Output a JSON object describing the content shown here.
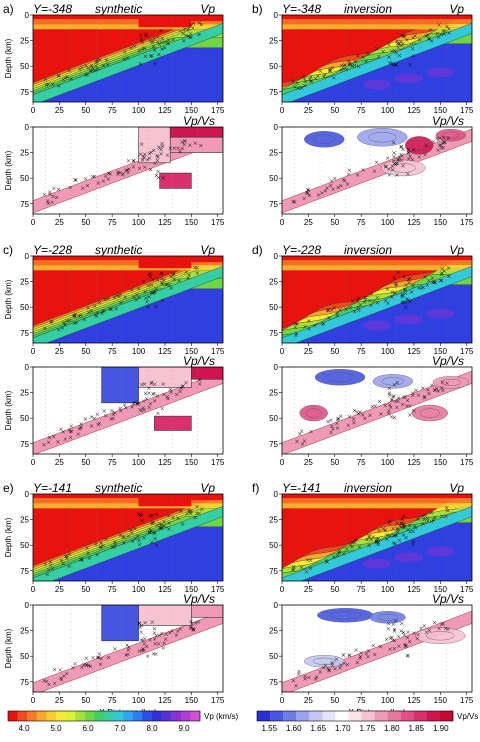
{
  "colorbars": {
    "vp": {
      "label": "Vp (km/s)",
      "ticks": [
        "4.0",
        "5.0",
        "6.0",
        "7.0",
        "8.0",
        "9.0"
      ],
      "colors": [
        "#e8120f",
        "#f2481d",
        "#f57a25",
        "#f9a82e",
        "#f9cd32",
        "#f6ec35",
        "#d9f236",
        "#a6e23c",
        "#6fd645",
        "#3fd06a",
        "#35cfa4",
        "#32c9d9",
        "#2fa6ef",
        "#2b7ef0",
        "#2d4fe7",
        "#3330d9",
        "#5a30d6",
        "#8533d3",
        "#b23bd2",
        "#d24fd7"
      ]
    },
    "vpvs": {
      "label": "Vp/Vs",
      "ticks": [
        "1.55",
        "1.60",
        "1.65",
        "1.70",
        "1.75",
        "1.80",
        "1.85",
        "1.90"
      ],
      "colors": [
        "#2b2fd6",
        "#4656e0",
        "#6b7ee6",
        "#9aa4ee",
        "#c3c8f3",
        "#e3e5f8",
        "#ffffff",
        "#fbe3ea",
        "#f6c3d3",
        "#f09ab7",
        "#e8779d",
        "#e15184",
        "#d9316d",
        "#d01450",
        "#c40a2f"
      ]
    }
  },
  "x_axis_label": "X-Distance (km)",
  "chart_data": [
    {
      "panel": "a",
      "row": 0,
      "side": "left",
      "model": "synthetic",
      "y_value": "Y=-348",
      "section": "Vp",
      "type": "heatmap",
      "ylabel": "Depth (km)",
      "xlabel": "",
      "x_ticks": [
        "0",
        "25",
        "50",
        "75",
        "100",
        "125",
        "150",
        "175"
      ],
      "y_ticks": [
        "0",
        "25",
        "50",
        "75"
      ],
      "xlim": [
        0,
        180
      ],
      "ylim": [
        0,
        85
      ]
    },
    {
      "panel": "",
      "row": 0,
      "side": "left",
      "model": "synthetic",
      "y_value": "",
      "section": "Vp/Vs",
      "type": "heatmap",
      "ylabel": "Depth (km)",
      "xlabel": "",
      "x_ticks": [
        "0",
        "25",
        "50",
        "75",
        "100",
        "125",
        "150",
        "175"
      ],
      "y_ticks": [
        "0",
        "25",
        "50",
        "75"
      ],
      "xlim": [
        0,
        180
      ],
      "ylim": [
        0,
        85
      ]
    },
    {
      "panel": "b",
      "row": 0,
      "side": "right",
      "model": "inversion",
      "y_value": "Y=-348",
      "section": "Vp",
      "type": "heatmap",
      "ylabel": "",
      "xlabel": "",
      "x_ticks": [
        "0",
        "25",
        "50",
        "75",
        "100",
        "125",
        "150",
        "175"
      ],
      "y_ticks": [
        "0",
        "25",
        "50",
        "75"
      ],
      "xlim": [
        0,
        180
      ],
      "ylim": [
        0,
        85
      ]
    },
    {
      "panel": "",
      "row": 0,
      "side": "right",
      "model": "inversion",
      "y_value": "",
      "section": "Vp/Vs",
      "type": "heatmap",
      "ylabel": "",
      "xlabel": "",
      "x_ticks": [
        "0",
        "25",
        "50",
        "75",
        "100",
        "125",
        "150",
        "175"
      ],
      "y_ticks": [
        "0",
        "25",
        "50",
        "75"
      ],
      "xlim": [
        0,
        180
      ],
      "ylim": [
        0,
        85
      ]
    },
    {
      "panel": "c",
      "row": 1,
      "side": "left",
      "model": "synthetic",
      "y_value": "Y=-228",
      "section": "Vp",
      "type": "heatmap",
      "ylabel": "Depth (km)",
      "xlabel": "",
      "x_ticks": [
        "0",
        "25",
        "50",
        "75",
        "100",
        "125",
        "150",
        "175"
      ],
      "y_ticks": [
        "0",
        "25",
        "50",
        "75"
      ],
      "xlim": [
        0,
        180
      ],
      "ylim": [
        0,
        85
      ]
    },
    {
      "panel": "",
      "row": 1,
      "side": "left",
      "model": "synthetic",
      "y_value": "",
      "section": "Vp/Vs",
      "type": "heatmap",
      "ylabel": "Depth (km)",
      "xlabel": "",
      "x_ticks": [
        "0",
        "25",
        "50",
        "75",
        "100",
        "125",
        "150",
        "175"
      ],
      "y_ticks": [
        "0",
        "25",
        "50",
        "75"
      ],
      "xlim": [
        0,
        180
      ],
      "ylim": [
        0,
        85
      ]
    },
    {
      "panel": "d",
      "row": 1,
      "side": "right",
      "model": "inversion",
      "y_value": "Y=-228",
      "section": "Vp",
      "type": "heatmap",
      "ylabel": "",
      "xlabel": "",
      "x_ticks": [
        "0",
        "25",
        "50",
        "75",
        "100",
        "125",
        "150",
        "175"
      ],
      "y_ticks": [
        "0",
        "25",
        "50",
        "75"
      ],
      "xlim": [
        0,
        180
      ],
      "ylim": [
        0,
        85
      ]
    },
    {
      "panel": "",
      "row": 1,
      "side": "right",
      "model": "inversion",
      "y_value": "",
      "section": "Vp/Vs",
      "type": "heatmap",
      "ylabel": "",
      "xlabel": "",
      "x_ticks": [
        "0",
        "25",
        "50",
        "75",
        "100",
        "125",
        "150",
        "175"
      ],
      "y_ticks": [
        "0",
        "25",
        "50",
        "75"
      ],
      "xlim": [
        0,
        180
      ],
      "ylim": [
        0,
        85
      ]
    },
    {
      "panel": "e",
      "row": 2,
      "side": "left",
      "model": "synthetic",
      "y_value": "Y=-141",
      "section": "Vp",
      "type": "heatmap",
      "ylabel": "Depth (km)",
      "xlabel": "",
      "x_ticks": [
        "0",
        "25",
        "50",
        "75",
        "100",
        "125",
        "150",
        "175"
      ],
      "y_ticks": [
        "0",
        "25",
        "50",
        "75"
      ],
      "xlim": [
        0,
        180
      ],
      "ylim": [
        0,
        85
      ]
    },
    {
      "panel": "",
      "row": 2,
      "side": "left",
      "model": "synthetic",
      "y_value": "",
      "section": "Vp/Vs",
      "type": "heatmap",
      "ylabel": "Depth (km)",
      "xlabel": "X-Distance (km)",
      "x_ticks": [
        "0",
        "25",
        "50",
        "75",
        "100",
        "125",
        "150",
        "175"
      ],
      "y_ticks": [
        "0",
        "25",
        "50",
        "75"
      ],
      "xlim": [
        0,
        180
      ],
      "ylim": [
        0,
        85
      ]
    },
    {
      "panel": "f",
      "row": 2,
      "side": "right",
      "model": "inversion",
      "y_value": "Y=-141",
      "section": "Vp",
      "type": "heatmap",
      "ylabel": "",
      "xlabel": "",
      "x_ticks": [
        "0",
        "25",
        "50",
        "75",
        "100",
        "125",
        "150",
        "175"
      ],
      "y_ticks": [
        "0",
        "25",
        "50",
        "75"
      ],
      "xlim": [
        0,
        180
      ],
      "ylim": [
        0,
        85
      ]
    },
    {
      "panel": "",
      "row": 2,
      "side": "right",
      "model": "inversion",
      "y_value": "",
      "section": "Vp/Vs",
      "type": "heatmap",
      "ylabel": "",
      "xlabel": "X-Distance (km)",
      "x_ticks": [
        "0",
        "25",
        "50",
        "75",
        "100",
        "125",
        "150",
        "175"
      ],
      "y_ticks": [
        "0",
        "25",
        "50",
        "75"
      ],
      "xlim": [
        0,
        180
      ],
      "ylim": [
        0,
        85
      ]
    }
  ]
}
